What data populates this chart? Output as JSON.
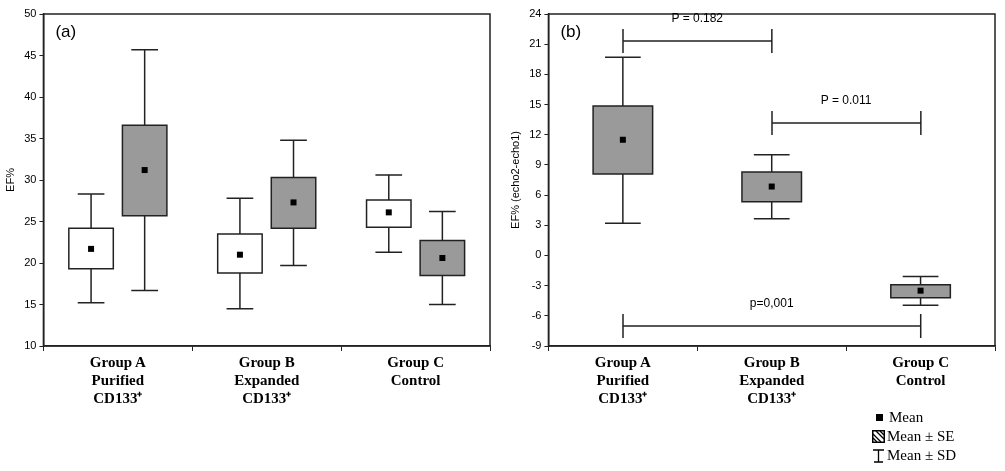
{
  "chart_data": [
    {
      "type": "box",
      "ylabel": "EF%",
      "categories": [
        "Group A\nPurified\nCD133⁺",
        "Group B\nExpanded\nCD133⁺",
        "Group C\nControl"
      ],
      "ylim": [
        10,
        50
      ],
      "yticks": [
        10,
        15,
        20,
        25,
        30,
        35,
        40,
        45,
        50
      ],
      "series": [
        {
          "color": "#ffffff",
          "boxes": [
            {
              "low": 15.2,
              "q1": 19.3,
              "median": 21.7,
              "q3": 24.2,
              "high": 28.3
            },
            {
              "low": 14.5,
              "q1": 18.8,
              "median": 21.0,
              "q3": 23.5,
              "high": 27.8
            },
            {
              "low": 21.3,
              "q1": 24.3,
              "median": 26.1,
              "q3": 27.6,
              "high": 30.6
            }
          ]
        },
        {
          "color": "#9a9a9a",
          "boxes": [
            {
              "low": 16.7,
              "q1": 25.7,
              "median": 31.2,
              "q3": 36.6,
              "high": 45.7
            },
            {
              "low": 19.7,
              "q1": 24.2,
              "median": 27.3,
              "q3": 30.3,
              "high": 34.8
            },
            {
              "low": 15.0,
              "q1": 18.5,
              "median": 20.6,
              "q3": 22.7,
              "high": 26.2
            }
          ]
        }
      ],
      "annotations": [
        "(a)"
      ]
    },
    {
      "type": "box",
      "ylabel": "EF% (echo2-echo1)",
      "categories": [
        "Group A\nPurified\nCD133⁺",
        "Group B\nExpanded\nCD133⁺",
        "Group C\nControl"
      ],
      "ylim": [
        -9,
        24
      ],
      "yticks": [
        -9,
        -6,
        -3,
        0,
        3,
        6,
        9,
        12,
        15,
        18,
        21,
        24
      ],
      "series": [
        {
          "color": "#9a9a9a",
          "boxes": [
            {
              "low": 3.2,
              "q1": 8.1,
              "median": 11.5,
              "q3": 14.85,
              "high": 19.7
            },
            {
              "low": 3.65,
              "q1": 5.35,
              "median": 6.85,
              "q3": 8.3,
              "high": 10.0
            },
            {
              "low": -4.95,
              "q1": -4.2,
              "median": -3.5,
              "q3": -2.9,
              "high": -2.1
            }
          ]
        }
      ],
      "annotations": [
        "(b)",
        "P = 0.182",
        "P = 0.011",
        "p=0,001",
        "Mean",
        "Mean ± SE",
        "Mean ± SD"
      ]
    }
  ]
}
